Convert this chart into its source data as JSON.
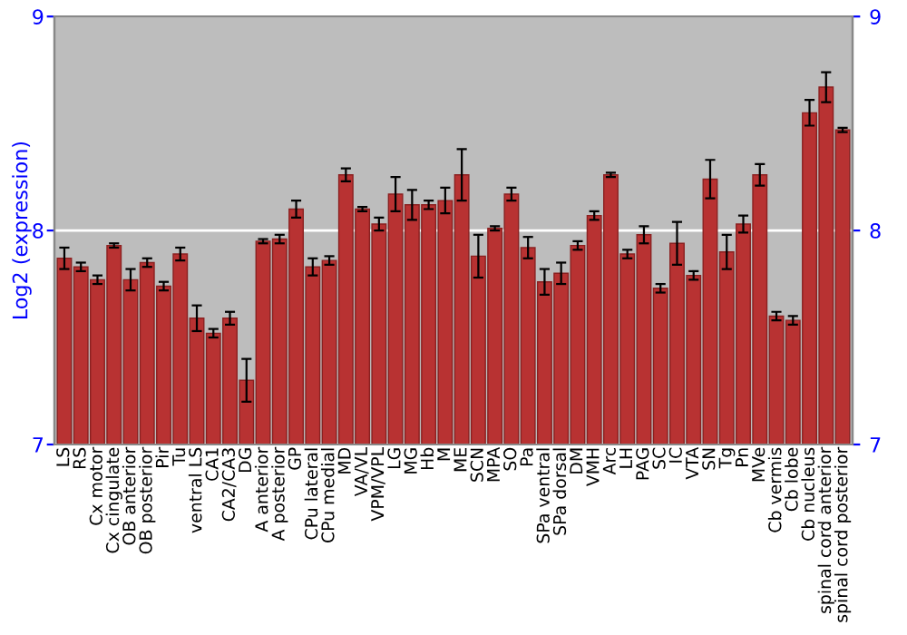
{
  "chart_data": {
    "type": "bar",
    "ylabel": "Log2 (expression)",
    "categories": [
      "LS",
      "RS",
      "Cx motor",
      "Cx cingulate",
      "OB anterior",
      "OB posterior",
      "Pir",
      "Tu",
      "ventral LS",
      "CA1",
      "CA2/CA3",
      "DG",
      "A anterior",
      "A posterior",
      "GP",
      "CPu lateral",
      "CPu medial",
      "MD",
      "VA/VL",
      "VPM/VPL",
      "LG",
      "MG",
      "Hb",
      "M",
      "ME",
      "SCN",
      "MPA",
      "SO",
      "Pa",
      "SPa ventral",
      "SPa dorsal",
      "DM",
      "VMH",
      "Arc",
      "LH",
      "PAG",
      "SC",
      "IC",
      "VTA",
      "SN",
      "Tg",
      "Pn",
      "MVe",
      "Cb vermis",
      "Cb lobe",
      "Cb nucleus",
      "spinal cord anterior",
      "spinal cord posterior"
    ],
    "values": [
      7.87,
      7.83,
      7.77,
      7.93,
      7.77,
      7.85,
      7.74,
      7.89,
      7.59,
      7.52,
      7.59,
      7.3,
      7.95,
      7.96,
      8.1,
      7.83,
      7.86,
      8.26,
      8.1,
      8.03,
      8.17,
      8.12,
      8.12,
      8.14,
      8.26,
      7.88,
      8.01,
      8.17,
      7.92,
      7.76,
      7.8,
      7.93,
      8.07,
      8.26,
      7.89,
      7.98,
      7.73,
      7.94,
      7.79,
      8.24,
      7.9,
      8.03,
      8.26,
      7.6,
      7.58,
      8.55,
      8.67,
      8.47
    ],
    "errors": [
      0.05,
      0.02,
      0.02,
      0.01,
      0.05,
      0.02,
      0.02,
      0.03,
      0.06,
      0.02,
      0.03,
      0.1,
      0.01,
      0.02,
      0.04,
      0.04,
      0.02,
      0.03,
      0.01,
      0.03,
      0.08,
      0.07,
      0.02,
      0.06,
      0.12,
      0.1,
      0.01,
      0.03,
      0.05,
      0.06,
      0.05,
      0.02,
      0.02,
      0.01,
      0.02,
      0.04,
      0.02,
      0.1,
      0.02,
      0.09,
      0.08,
      0.04,
      0.05,
      0.02,
      0.02,
      0.06,
      0.07,
      0.01
    ],
    "color": "#b83232",
    "ylim": [
      7,
      9
    ],
    "yticks": [
      7,
      8,
      9
    ],
    "y2lim": [
      7,
      9
    ],
    "y2ticks": [
      7,
      8,
      9
    ],
    "grid": "y"
  }
}
